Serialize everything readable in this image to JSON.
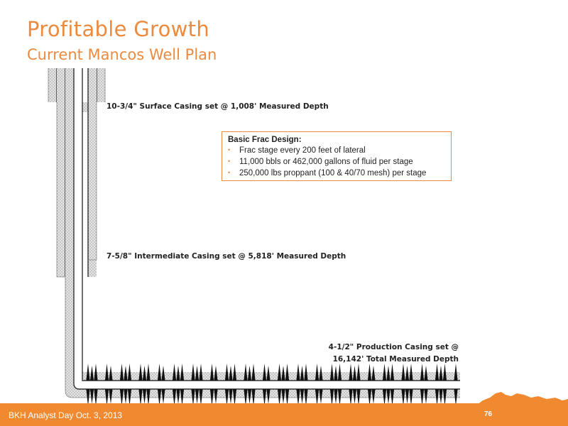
{
  "header": {
    "title": "Profitable Growth",
    "subtitle": "Current Mancos Well Plan"
  },
  "labels": {
    "surface_casing": "10-3/4\" Surface Casing set @ 1,008' Measured Depth",
    "intermediate_casing": "7-5/8\" Intermediate Casing set @ 5,818' Measured Depth",
    "production_casing_line1": "4-1/2\" Production Casing set @",
    "production_casing_line2": "16,142' Total Measured Depth"
  },
  "frac_design": {
    "title": "Basic Frac Design:",
    "items": [
      "Frac stage every 200 feet of lateral",
      "11,000 bbls  or 462,000 gallons of fluid per stage",
      "250,000 lbs proppant (100 & 40/70 mesh) per stage"
    ]
  },
  "footer": {
    "event": "BKH Analyst Day  Oct. 3, 2013",
    "page_number": "76"
  },
  "colors": {
    "accent": "#ec8a3d",
    "footer": "#f0892f",
    "cement": "#d8d8d8",
    "frac": "#111111"
  }
}
